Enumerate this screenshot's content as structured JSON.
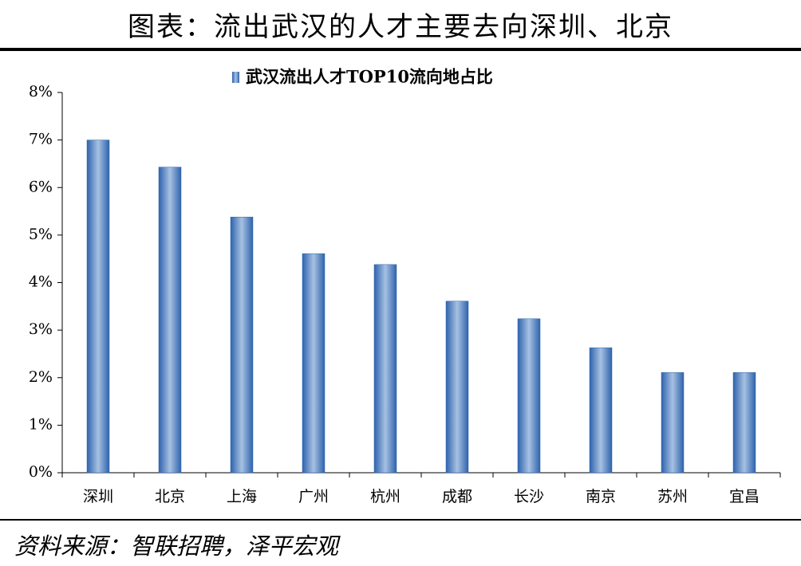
{
  "header": {
    "title": "图表：流出武汉的人才主要去向深圳、北京"
  },
  "chart_data": {
    "type": "bar",
    "categories": [
      "深圳",
      "北京",
      "上海",
      "广州",
      "杭州",
      "成都",
      "长沙",
      "南京",
      "苏州",
      "宜昌"
    ],
    "series": [
      {
        "name": "武汉流出人才TOP10流向地占比",
        "color": "#2f63ad",
        "values": [
          7.0,
          6.43,
          5.38,
          4.61,
          4.38,
          3.61,
          3.24,
          2.63,
          2.11,
          2.11
        ]
      }
    ],
    "ylim": [
      0,
      8
    ],
    "yticks": [
      {
        "value": 0,
        "label": "0%"
      },
      {
        "value": 1,
        "label": "1%"
      },
      {
        "value": 2,
        "label": "2%"
      },
      {
        "value": 3,
        "label": "3%"
      },
      {
        "value": 4,
        "label": "4%"
      },
      {
        "value": 5,
        "label": "5%"
      },
      {
        "value": 6,
        "label": "6%"
      },
      {
        "value": 7,
        "label": "7%"
      },
      {
        "value": 8,
        "label": "8%"
      }
    ],
    "grid": false,
    "legend": "top"
  },
  "footer": {
    "source": "资料来源：智联招聘，泽平宏观"
  }
}
